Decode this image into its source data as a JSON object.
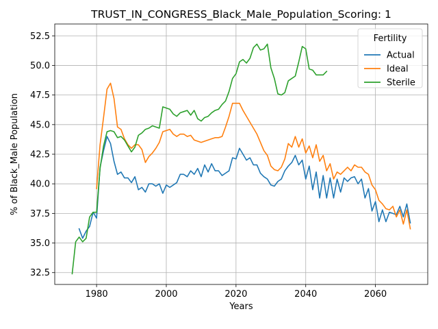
{
  "chart_data": {
    "type": "line",
    "title": "TRUST_IN_CONGRESS_Black_Male_Population_Scoring: 1",
    "xlabel": "Years",
    "ylabel": "% of Black_Male Population",
    "xlim": [
      1968,
      2075
    ],
    "ylim": [
      31.5,
      53.5
    ],
    "xticks": [
      1980,
      2000,
      2020,
      2040,
      2060
    ],
    "yticks": [
      32.5,
      35.0,
      37.5,
      40.0,
      42.5,
      45.0,
      47.5,
      50.0,
      52.5
    ],
    "ytick_labels": [
      "32.5",
      "35.0",
      "37.5",
      "40.0",
      "42.5",
      "45.0",
      "47.5",
      "50.0",
      "52.5"
    ],
    "grid": true,
    "legend": {
      "title": "Fertility",
      "placement": "top-right"
    },
    "series": [
      {
        "name": "Actual",
        "color": "#1f77b4",
        "x": [
          1975,
          1976,
          1977,
          1978,
          1979,
          1980,
          1981,
          1982,
          1983,
          1984,
          1985,
          1986,
          1987,
          1988,
          1989,
          1990,
          1991,
          1992,
          1993,
          1994,
          1995,
          1996,
          1997,
          1998,
          1999,
          2000,
          2001,
          2002,
          2003,
          2004,
          2005,
          2006,
          2007,
          2008,
          2009,
          2010,
          2011,
          2012,
          2013,
          2014,
          2015,
          2016,
          2017,
          2018,
          2019,
          2020,
          2021,
          2022,
          2023,
          2024,
          2025,
          2026,
          2027,
          2028,
          2029,
          2030,
          2031,
          2032,
          2033,
          2034,
          2035,
          2036,
          2037,
          2038,
          2039,
          2040,
          2041,
          2042,
          2043,
          2044,
          2045,
          2046,
          2047,
          2048,
          2049,
          2050,
          2051,
          2052,
          2053,
          2054,
          2055,
          2056,
          2057,
          2058,
          2059,
          2060,
          2061,
          2062,
          2063,
          2064,
          2065,
          2066,
          2067,
          2068,
          2069,
          2070
        ],
        "values": [
          36.2,
          35.4,
          36.0,
          36.4,
          37.6,
          37.1,
          41.4,
          42.8,
          44.0,
          43.4,
          41.9,
          40.8,
          41.0,
          40.5,
          40.5,
          40.1,
          40.6,
          39.5,
          39.7,
          39.3,
          40.0,
          40.0,
          39.8,
          40.0,
          39.2,
          39.9,
          39.7,
          39.9,
          40.1,
          40.8,
          40.8,
          40.6,
          41.1,
          40.8,
          41.3,
          40.6,
          41.6,
          41.0,
          41.7,
          41.1,
          41.1,
          40.7,
          40.9,
          41.1,
          42.2,
          42.1,
          43.0,
          42.5,
          42.0,
          42.2,
          41.6,
          41.6,
          40.9,
          40.6,
          40.4,
          39.9,
          39.8,
          40.2,
          40.4,
          41.1,
          41.5,
          41.8,
          42.4,
          41.6,
          42.0,
          40.4,
          41.5,
          39.5,
          41.0,
          38.8,
          40.7,
          38.8,
          40.5,
          38.8,
          40.4,
          39.3,
          40.5,
          40.2,
          40.5,
          40.6,
          40.0,
          40.4,
          38.8,
          39.6,
          37.7,
          38.5,
          36.8,
          37.8,
          36.8,
          37.6,
          37.5,
          37.4,
          38.1,
          37.2,
          38.3,
          36.7
        ]
      },
      {
        "name": "Ideal",
        "color": "#ff7f0e",
        "x": [
          1980,
          1981,
          1982,
          1983,
          1984,
          1985,
          1986,
          1987,
          1988,
          1989,
          1990,
          1991,
          1992,
          1993,
          1994,
          1995,
          1996,
          1997,
          1998,
          1999,
          2000,
          2001,
          2002,
          2003,
          2004,
          2005,
          2006,
          2007,
          2008,
          2009,
          2010,
          2011,
          2012,
          2013,
          2014,
          2015,
          2016,
          2017,
          2018,
          2019,
          2020,
          2021,
          2022,
          2023,
          2024,
          2025,
          2026,
          2027,
          2028,
          2029,
          2030,
          2031,
          2032,
          2033,
          2034,
          2035,
          2036,
          2037,
          2038,
          2039,
          2040,
          2041,
          2042,
          2043,
          2044,
          2045,
          2046,
          2047,
          2048,
          2049,
          2050,
          2051,
          2052,
          2053,
          2054,
          2055,
          2056,
          2057,
          2058,
          2059,
          2060,
          2061,
          2062,
          2063,
          2064,
          2065,
          2066,
          2067,
          2068,
          2069,
          2070
        ],
        "values": [
          39.6,
          43.3,
          45.6,
          48.0,
          48.5,
          47.2,
          44.8,
          44.6,
          43.8,
          43.3,
          43.0,
          43.3,
          43.3,
          42.9,
          41.8,
          42.3,
          42.6,
          43.0,
          43.5,
          44.4,
          44.5,
          44.6,
          44.2,
          44.0,
          44.2,
          44.2,
          44.0,
          44.1,
          43.7,
          43.6,
          43.5,
          43.6,
          43.7,
          43.8,
          43.9,
          43.9,
          44.0,
          44.8,
          45.7,
          46.8,
          46.8,
          46.8,
          46.2,
          45.7,
          45.2,
          44.7,
          44.2,
          43.5,
          42.8,
          42.4,
          41.5,
          41.2,
          41.1,
          41.4,
          42.1,
          43.4,
          43.1,
          44.0,
          43.1,
          43.8,
          42.6,
          43.2,
          42.2,
          43.3,
          41.9,
          42.4,
          41.1,
          41.7,
          40.4,
          41.0,
          40.8,
          41.1,
          41.4,
          41.1,
          41.6,
          41.4,
          41.4,
          41.0,
          40.8,
          39.9,
          39.5,
          38.6,
          38.3,
          37.9,
          37.8,
          38.1,
          37.2,
          37.8,
          36.6,
          37.8,
          36.2
        ]
      },
      {
        "name": "Sterile",
        "color": "#2ca02c",
        "x": [
          1973,
          1974,
          1975,
          1976,
          1977,
          1978,
          1979,
          1980,
          1981,
          1982,
          1983,
          1984,
          1985,
          1986,
          1987,
          1988,
          1989,
          1990,
          1991,
          1992,
          1993,
          1994,
          1995,
          1996,
          1997,
          1998,
          1999,
          2000,
          2001,
          2002,
          2003,
          2004,
          2005,
          2006,
          2007,
          2008,
          2009,
          2010,
          2011,
          2012,
          2013,
          2014,
          2015,
          2016,
          2017,
          2018,
          2019,
          2020,
          2021,
          2022,
          2023,
          2024,
          2025,
          2026,
          2027,
          2028,
          2029,
          2030,
          2031,
          2032,
          2033,
          2034,
          2035,
          2036,
          2037,
          2038,
          2039,
          2040,
          2041,
          2042,
          2043,
          2044,
          2045,
          2046
        ],
        "values": [
          32.4,
          35.1,
          35.5,
          35.1,
          35.4,
          37.2,
          37.6,
          37.6,
          41.3,
          43.2,
          44.4,
          44.5,
          44.4,
          43.9,
          44.0,
          43.7,
          43.2,
          42.7,
          43.1,
          44.1,
          44.3,
          44.6,
          44.7,
          44.9,
          44.8,
          44.7,
          46.5,
          46.4,
          46.3,
          45.9,
          45.7,
          46.0,
          46.1,
          46.2,
          45.8,
          46.2,
          45.5,
          45.3,
          45.6,
          45.7,
          46.0,
          46.2,
          46.3,
          46.7,
          47.0,
          47.8,
          48.9,
          49.3,
          50.3,
          50.5,
          50.2,
          50.6,
          51.5,
          51.8,
          51.3,
          51.4,
          51.8,
          49.8,
          48.9,
          47.6,
          47.5,
          47.7,
          48.7,
          48.9,
          49.1,
          50.3,
          51.6,
          51.4,
          49.7,
          49.6,
          49.2,
          49.2,
          49.2,
          49.5
        ]
      }
    ]
  }
}
